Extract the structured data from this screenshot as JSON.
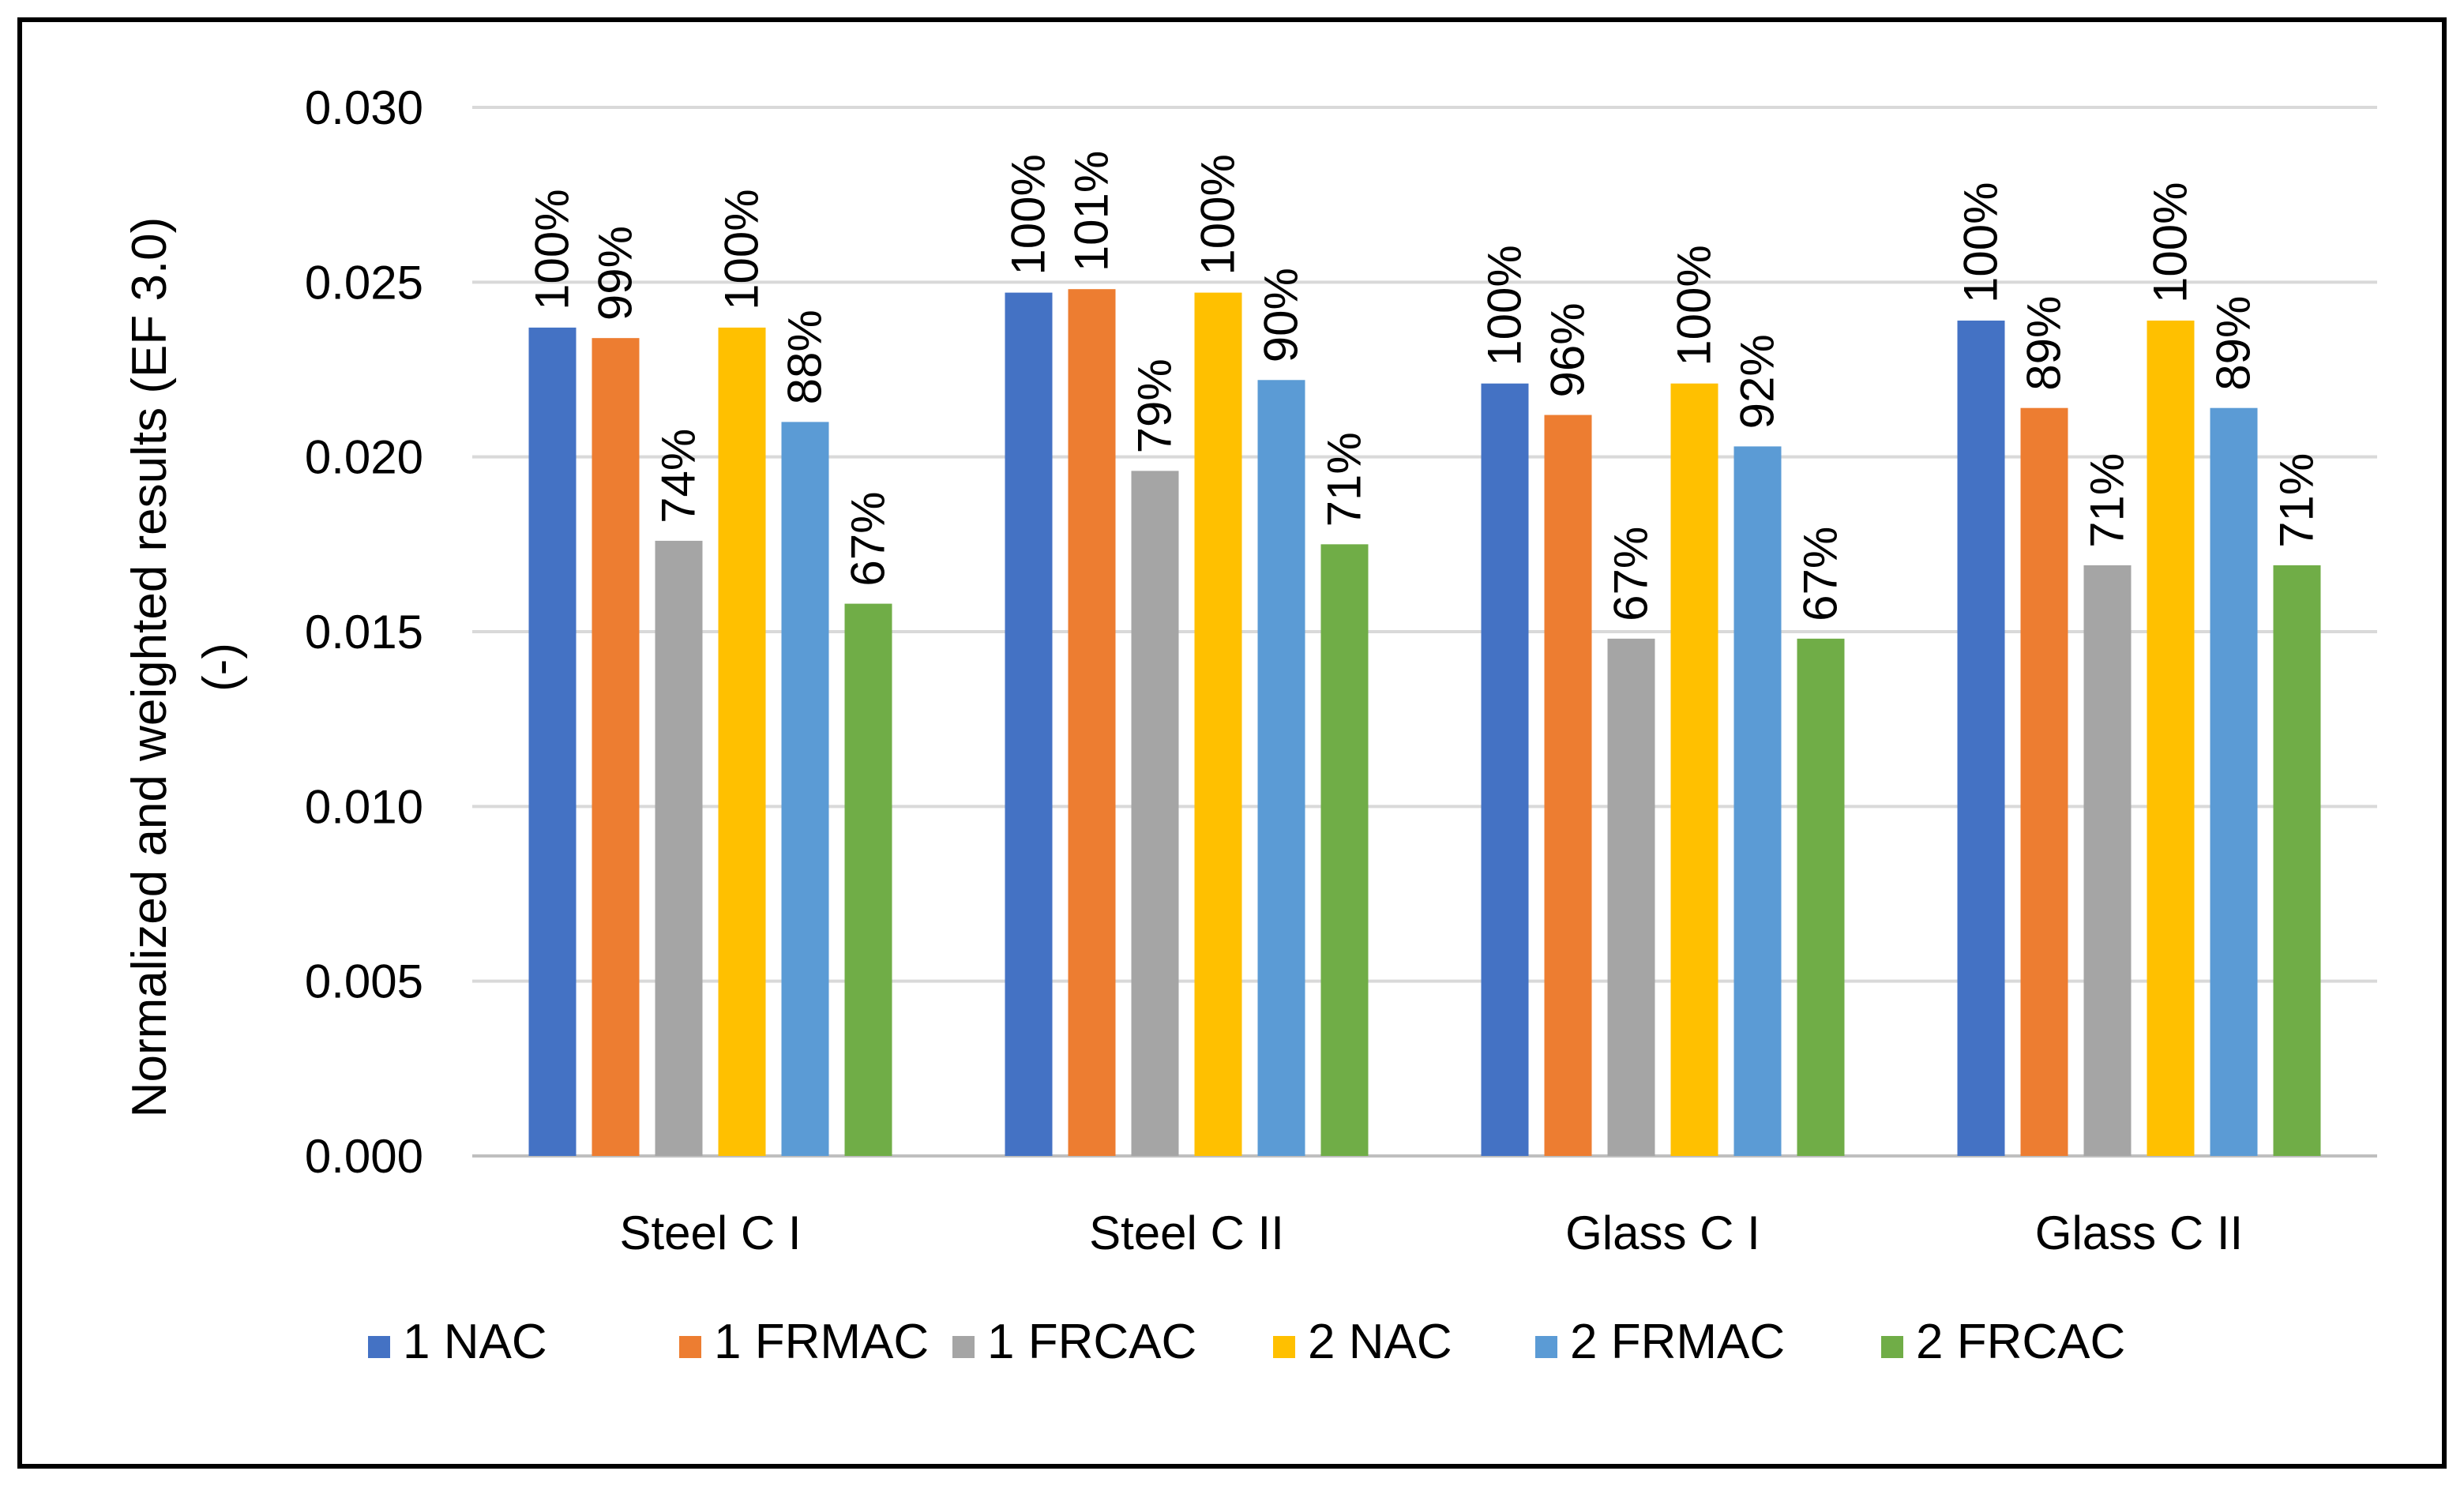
{
  "chart_data": {
    "type": "bar",
    "categories": [
      "Steel C I",
      "Steel C II",
      "Glass C I",
      "Glass C II"
    ],
    "ylabel_line1": "Normalized and weighted results (EF 3.0)",
    "ylabel_line2": "(-)",
    "xlabel": "",
    "ylim": [
      0,
      0.03
    ],
    "yticks": [
      0.0,
      0.005,
      0.01,
      0.015,
      0.02,
      0.025,
      0.03
    ],
    "ytick_labels": [
      "0.000",
      "0.005",
      "0.010",
      "0.015",
      "0.020",
      "0.025",
      "0.030"
    ],
    "grid": true,
    "legend_position": "bottom",
    "series": [
      {
        "name": "1 NAC",
        "color": "#4472C4",
        "values": [
          0.0237,
          0.0247,
          0.0221,
          0.0239
        ],
        "labels": [
          "100%",
          "100%",
          "100%",
          "100%"
        ]
      },
      {
        "name": "1 FRMAC",
        "color": "#ED7D31",
        "values": [
          0.0234,
          0.0248,
          0.0212,
          0.0214
        ],
        "labels": [
          "99%",
          "101%",
          "96%",
          "89%"
        ]
      },
      {
        "name": "1 FRCAC",
        "color": "#A5A5A5",
        "values": [
          0.0176,
          0.0196,
          0.0148,
          0.0169
        ],
        "labels": [
          "74%",
          "79%",
          "67%",
          "71%"
        ]
      },
      {
        "name": "2 NAC",
        "color": "#FFC000",
        "values": [
          0.0237,
          0.0247,
          0.0221,
          0.0239
        ],
        "labels": [
          "100%",
          "100%",
          "100%",
          "100%"
        ]
      },
      {
        "name": "2 FRMAC",
        "color": "#5B9BD5",
        "values": [
          0.021,
          0.0222,
          0.0203,
          0.0214
        ],
        "labels": [
          "88%",
          "90%",
          "92%",
          "89%"
        ]
      },
      {
        "name": "2 FRCAC",
        "color": "#70AD47",
        "values": [
          0.0158,
          0.0175,
          0.0148,
          0.0169
        ],
        "labels": [
          "67%",
          "71%",
          "67%",
          "71%"
        ]
      }
    ]
  }
}
